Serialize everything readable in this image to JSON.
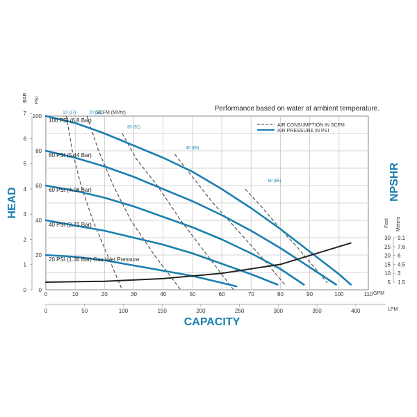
{
  "chart_data": {
    "type": "line",
    "note": "Performance based on water at ambient temperature.",
    "xlabel": "CAPACITY",
    "ylabel": "HEAD",
    "y2label": "NPSHR",
    "x_gpm": {
      "unit": "GPM",
      "ticks": [
        "0",
        "10",
        "20",
        "30",
        "40",
        "50",
        "60",
        "70",
        "80",
        "90",
        "100",
        "110"
      ],
      "range": [
        0,
        110
      ]
    },
    "x_lpm": {
      "unit": "LPM",
      "ticks": [
        "0",
        "50",
        "100",
        "150",
        "200",
        "250",
        "300",
        "350",
        "400"
      ]
    },
    "y_psi": {
      "unit": "PSI",
      "ticks": [
        "0",
        "20",
        "40",
        "60",
        "80",
        "100"
      ],
      "range": [
        0,
        100
      ]
    },
    "y_bar": {
      "unit": "BAR",
      "ticks": [
        "0",
        "1",
        "2",
        "3",
        "4",
        "5",
        "6",
        "7"
      ]
    },
    "npshr_feet": {
      "unit": "Feet",
      "ticks": [
        "5",
        "10",
        "15",
        "20",
        "25",
        "30"
      ]
    },
    "npshr_meters": {
      "unit": "Meters",
      "ticks": [
        "1.5",
        "3",
        "4.5",
        "6",
        "7.6",
        "9.1"
      ]
    },
    "scfm_title": "SCFM (M³/hr)",
    "scfm_labels": [
      "10 (17)",
      "20 (34)",
      "30 (51)",
      "40 (68)",
      "50 (85)"
    ],
    "legend": [
      "AIR CONSUMPTION IN SCFM",
      "AIR PRESSURE IN PSI"
    ],
    "pressure_series": [
      {
        "name": "100 PSI (6.8 Bar)",
        "x": [
          0,
          10,
          20,
          30,
          40,
          50,
          60,
          70,
          80,
          90,
          100,
          104
        ],
        "y": [
          100,
          96,
          90,
          83,
          76,
          68,
          58,
          47,
          35,
          22,
          9,
          3
        ]
      },
      {
        "name": "80 PSI (5.44 Bar)",
        "x": [
          0,
          10,
          20,
          30,
          40,
          50,
          60,
          70,
          80,
          90,
          99
        ],
        "y": [
          80,
          76,
          71,
          65,
          58,
          51,
          43,
          34,
          24,
          13,
          3
        ]
      },
      {
        "name": "60 PSI (4.08 Bar)",
        "x": [
          0,
          10,
          20,
          30,
          40,
          50,
          60,
          70,
          80,
          88
        ],
        "y": [
          60,
          57,
          53,
          48,
          42,
          36,
          29,
          21,
          12,
          3
        ]
      },
      {
        "name": "40 PSI (2.72 Bar)",
        "x": [
          0,
          10,
          20,
          30,
          40,
          50,
          60,
          70,
          79
        ],
        "y": [
          40,
          37,
          34,
          30,
          26,
          21,
          15,
          9,
          3
        ]
      },
      {
        "name": "20 PSI (1.36 Bar) Gas Inlet Pressure",
        "x": [
          0,
          10,
          20,
          30,
          40,
          50,
          60,
          65
        ],
        "y": [
          20,
          19,
          17,
          14,
          11,
          8,
          4,
          2
        ]
      }
    ],
    "air_consumption_series": [
      {
        "name": "10 (17)",
        "x": [
          7,
          9,
          12,
          16,
          21,
          26
        ],
        "y": [
          100,
          80,
          60,
          40,
          20,
          0
        ]
      },
      {
        "name": "20 (34)",
        "x": [
          14,
          18,
          23,
          29,
          37,
          46
        ],
        "y": [
          100,
          80,
          60,
          40,
          20,
          0
        ]
      },
      {
        "name": "30 (51)",
        "x": [
          26,
          31,
          38,
          46,
          55,
          64
        ],
        "y": [
          90,
          75,
          60,
          40,
          20,
          0
        ]
      },
      {
        "name": "40 (68)",
        "x": [
          44,
          50,
          57,
          65,
          74,
          82
        ],
        "y": [
          78,
          65,
          50,
          35,
          18,
          2
        ]
      },
      {
        "name": "50 (85)",
        "x": [
          68,
          74,
          80,
          86,
          92,
          96
        ],
        "y": [
          58,
          47,
          35,
          24,
          12,
          4
        ]
      }
    ],
    "npshr_series": {
      "x": [
        0,
        20,
        40,
        60,
        80,
        100,
        104
      ],
      "y_feet": [
        5,
        5.5,
        7,
        10,
        15,
        25,
        27
      ]
    }
  }
}
